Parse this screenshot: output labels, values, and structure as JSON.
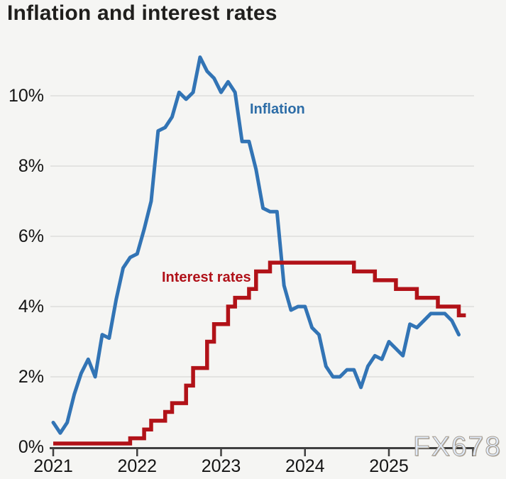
{
  "title": "Inflation and interest rates",
  "watermark": "FX678",
  "colors": {
    "inflation_line": "#3274b5",
    "rates_line": "#b11218",
    "inflation_label": "#2d6da7",
    "rates_label": "#b01119",
    "grid": "#dddddb",
    "axis": "#404040",
    "background": "#f5f5f3",
    "watermark_fill": "#e1ebf9"
  },
  "chart_data": {
    "type": "line",
    "title": "Inflation and interest rates",
    "xlabel": "",
    "ylabel": "",
    "unit": "%",
    "grid": true,
    "legend_position": "inline-annotations",
    "x_ticks": [
      "2021",
      "2022",
      "2023",
      "2024",
      "2025"
    ],
    "y_ticks": [
      "0%",
      "2%",
      "4%",
      "6%",
      "8%",
      "10%"
    ],
    "y_tick_values": [
      0,
      2,
      4,
      6,
      8,
      10
    ],
    "ylim": [
      0,
      11.5
    ],
    "x_start_month": "2021-01",
    "series": [
      {
        "name": "Inflation",
        "style": "line",
        "color": "#3274b5",
        "start_month": "2021-01",
        "monthly_values": [
          0.7,
          0.4,
          0.7,
          1.5,
          2.1,
          2.5,
          2.0,
          3.2,
          3.1,
          4.2,
          5.1,
          5.4,
          5.5,
          6.2,
          7.0,
          9.0,
          9.1,
          9.4,
          10.1,
          9.9,
          10.1,
          11.1,
          10.7,
          10.5,
          10.1,
          10.4,
          10.1,
          8.7,
          8.7,
          7.9,
          6.8,
          6.7,
          6.7,
          4.6,
          3.9,
          4.0,
          4.0,
          3.4,
          3.2,
          2.3,
          2.0,
          2.0,
          2.2,
          2.2,
          1.7,
          2.3,
          2.6,
          2.5,
          3.0,
          2.8,
          2.6,
          3.5,
          3.4,
          3.6,
          3.8,
          3.8,
          3.8,
          3.6,
          3.2
        ]
      },
      {
        "name": "Interest rates",
        "style": "step",
        "color": "#b11218",
        "start_month": "2021-01",
        "monthly_values": [
          0.1,
          0.1,
          0.1,
          0.1,
          0.1,
          0.1,
          0.1,
          0.1,
          0.1,
          0.1,
          0.1,
          0.25,
          0.25,
          0.5,
          0.75,
          0.75,
          1.0,
          1.25,
          1.25,
          1.75,
          2.25,
          2.25,
          3.0,
          3.5,
          3.5,
          4.0,
          4.25,
          4.25,
          4.5,
          5.0,
          5.0,
          5.25,
          5.25,
          5.25,
          5.25,
          5.25,
          5.25,
          5.25,
          5.25,
          5.25,
          5.25,
          5.25,
          5.25,
          5.0,
          5.0,
          5.0,
          4.75,
          4.75,
          4.75,
          4.5,
          4.5,
          4.5,
          4.25,
          4.25,
          4.25,
          4.0,
          4.0,
          4.0,
          3.75,
          3.75
        ]
      }
    ]
  }
}
